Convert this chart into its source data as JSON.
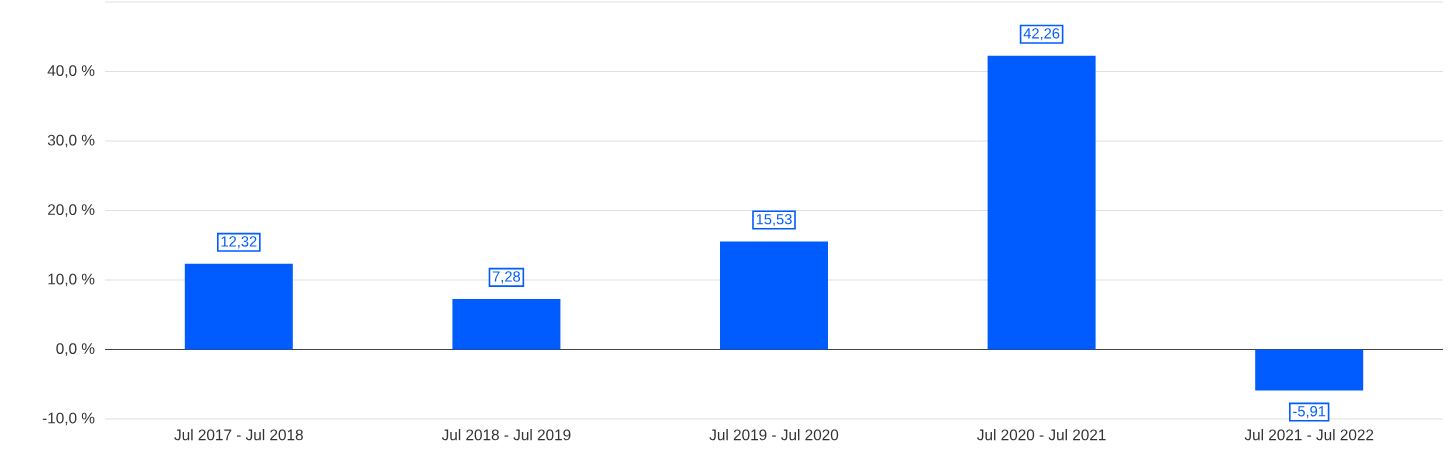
{
  "chart_data": {
    "type": "bar",
    "categories": [
      "Jul 2017 - Jul 2018",
      "Jul 2018 - Jul 2019",
      "Jul 2019 - Jul 2020",
      "Jul 2020 - Jul 2021",
      "Jul 2021 - Jul 2022"
    ],
    "values": [
      12.32,
      7.28,
      15.53,
      42.26,
      -5.91
    ],
    "value_labels": [
      "12,32",
      "7,28",
      "15,53",
      "42,26",
      "-5,91"
    ],
    "color": "#005cff",
    "ylim": [
      -10,
      50
    ],
    "yticks": [
      {
        "value": -10,
        "label": "-10,0 %"
      },
      {
        "value": 0,
        "label": "0,0 %"
      },
      {
        "value": 10,
        "label": "10,0 %"
      },
      {
        "value": 20,
        "label": "20,0 %"
      },
      {
        "value": 30,
        "label": "30,0 %"
      },
      {
        "value": 40,
        "label": "40,0 %"
      },
      {
        "value": 50,
        "label": null
      }
    ],
    "grid": "y"
  }
}
